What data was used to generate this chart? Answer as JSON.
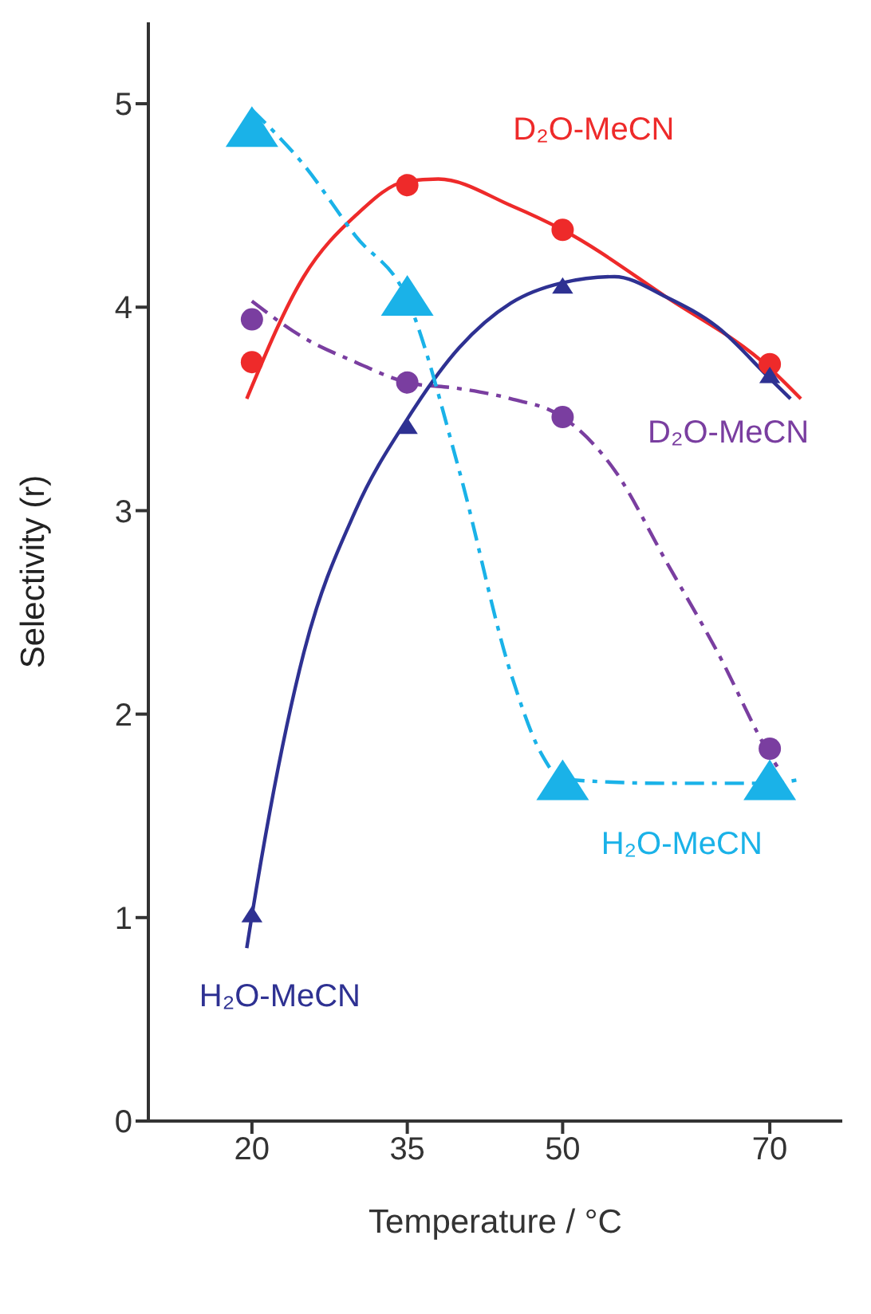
{
  "chart_data": {
    "type": "scatter",
    "xlabel": "Temperature / °C",
    "ylabel": "Selectivity (r)",
    "xlim": [
      10,
      77
    ],
    "xticks": [
      20,
      35,
      50,
      70
    ],
    "ylim": [
      0,
      5.4
    ],
    "yticks": [
      0,
      1,
      2,
      3,
      4,
      5
    ],
    "legend": false,
    "x": [
      20,
      35,
      50,
      70
    ],
    "series": [
      {
        "name": "D₂O-MeCN",
        "color": "#ee2a2a",
        "marker": "circle",
        "values": [
          3.73,
          4.6,
          4.38,
          3.72
        ]
      },
      {
        "name": "D₂O-MeCN",
        "color": "#7a3ea0",
        "marker": "circle",
        "values": [
          3.94,
          3.63,
          3.46,
          1.83
        ]
      },
      {
        "name": "H₂O-MeCN",
        "color": "#2e3192",
        "marker": "triangle",
        "values": [
          1.01,
          3.41,
          4.1,
          3.66
        ]
      },
      {
        "name": "H₂O-MeCN",
        "color": "#1ab2e8",
        "marker": "triangle",
        "values": [
          4.87,
          4.04,
          1.66,
          1.66
        ]
      },
      {
        "color": "#ee2a2a",
        "type": "line",
        "marker": "none",
        "line_style": "solid",
        "x": [
          19.5,
          25,
          30,
          35,
          38,
          45,
          50,
          60,
          70,
          73
        ],
        "values": [
          3.55,
          4.15,
          4.45,
          4.62,
          4.63,
          4.5,
          4.38,
          4.05,
          3.7,
          3.55
        ]
      },
      {
        "color": "#7a3ea0",
        "type": "line",
        "marker": "none",
        "line_style": "dashed",
        "x": [
          20,
          25,
          30,
          35,
          40,
          45,
          50,
          55,
          60,
          65,
          70,
          71
        ],
        "values": [
          4.03,
          3.85,
          3.73,
          3.63,
          3.6,
          3.55,
          3.46,
          3.2,
          2.75,
          2.3,
          1.8,
          1.72
        ]
      },
      {
        "color": "#2e3192",
        "type": "line",
        "marker": "none",
        "line_style": "solid",
        "x": [
          19.5,
          20,
          25,
          30,
          35,
          40,
          45,
          50,
          55,
          60,
          65,
          70,
          72
        ],
        "values": [
          0.85,
          1.01,
          2.3,
          3.0,
          3.45,
          3.8,
          4.02,
          4.12,
          4.15,
          4.05,
          3.9,
          3.65,
          3.55
        ]
      },
      {
        "color": "#1ab2e8",
        "type": "line",
        "marker": "none",
        "line_style": "dashed",
        "x": [
          20,
          25,
          30,
          35,
          40,
          45,
          48,
          50,
          60,
          70,
          73
        ],
        "values": [
          4.97,
          4.7,
          4.35,
          4.04,
          3.2,
          2.2,
          1.8,
          1.68,
          1.66,
          1.66,
          1.68
        ]
      }
    ]
  }
}
